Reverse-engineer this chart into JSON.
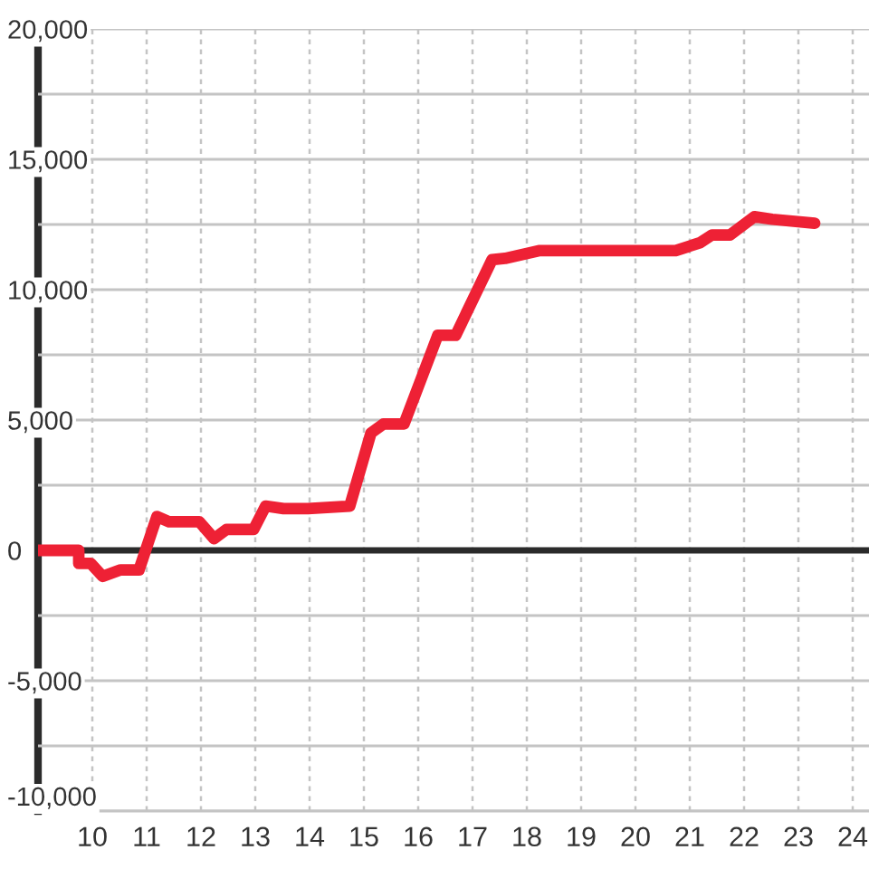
{
  "chart_data": {
    "type": "line",
    "x": [
      9,
      9.75,
      9.75,
      9.97,
      10.19,
      10.52,
      10.86,
      11.19,
      11.41,
      11.97,
      12.24,
      12.47,
      12.97,
      13.19,
      13.52,
      13.97,
      14.74,
      15.13,
      15.36,
      15.74,
      16.36,
      16.69,
      17.36,
      17.6,
      18.24,
      20.74,
      21.19,
      21.41,
      21.74,
      22.19,
      22.52,
      23.3
    ],
    "series": [
      {
        "color": "#ee2135",
        "values": [
          0,
          0,
          -500,
          -500,
          -1000,
          -750,
          -750,
          1300,
          1100,
          1100,
          450,
          800,
          800,
          1700,
          1600,
          1600,
          1700,
          4500,
          4850,
          4850,
          8250,
          8250,
          11150,
          11200,
          11500,
          11500,
          11800,
          12100,
          12100,
          12800,
          12700,
          12550
        ]
      }
    ],
    "xlim": [
      9,
      24.3
    ],
    "ylim": [
      -10000,
      20000
    ],
    "xticks": [
      10,
      11,
      12,
      13,
      14,
      15,
      16,
      17,
      18,
      19,
      20,
      21,
      22,
      23,
      24
    ],
    "yticks": [
      {
        "value": -10000,
        "label": "-10,000"
      },
      {
        "value": -7500,
        "label": null
      },
      {
        "value": -5000,
        "label": "-5,000"
      },
      {
        "value": -2500,
        "label": null
      },
      {
        "value": 0,
        "label": "0"
      },
      {
        "value": 2500,
        "label": null
      },
      {
        "value": 5000,
        "label": "5,000"
      },
      {
        "value": 7500,
        "label": null
      },
      {
        "value": 10000,
        "label": "10,000"
      },
      {
        "value": 12500,
        "label": null
      },
      {
        "value": 15000,
        "label": "15,000"
      },
      {
        "value": 17500,
        "label": null
      },
      {
        "value": 20000,
        "label": "20,000"
      }
    ],
    "ref_lines": [
      {
        "axis": "y",
        "value": 0,
        "color": "#2b2b2b"
      }
    ],
    "grid": true,
    "line_style": "solid"
  }
}
